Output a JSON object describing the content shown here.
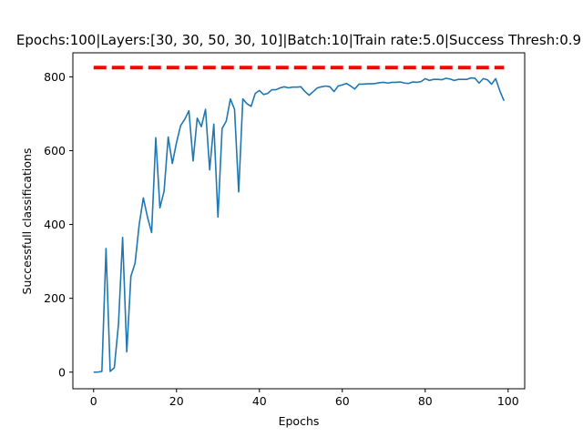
{
  "chart_data": {
    "type": "line",
    "title": "Epochs:100|Layers:[30, 30, 50, 30, 10]|Batch:10|Train rate:5.0|Success Thresh:0.9",
    "xlabel": "Epochs",
    "ylabel": "Successfull classifications",
    "xlim": [
      -5,
      104
    ],
    "ylim": [
      -45,
      865
    ],
    "xticks": [
      0,
      20,
      40,
      60,
      80,
      100
    ],
    "yticks": [
      0,
      200,
      400,
      600,
      800
    ],
    "grid": false,
    "legend": "none",
    "series": [
      {
        "name": "",
        "color": "#1f77b4",
        "x": [
          0,
          1,
          2,
          3,
          4,
          5,
          6,
          7,
          8,
          9,
          10,
          11,
          12,
          13,
          14,
          15,
          16,
          17,
          18,
          19,
          20,
          21,
          22,
          23,
          24,
          25,
          26,
          27,
          28,
          29,
          30,
          31,
          32,
          33,
          34,
          35,
          36,
          37,
          38,
          39,
          40,
          41,
          42,
          43,
          44,
          45,
          46,
          47,
          48,
          49,
          50,
          51,
          52,
          53,
          54,
          55,
          56,
          57,
          58,
          59,
          60,
          61,
          62,
          63,
          64,
          65,
          66,
          67,
          68,
          69,
          70,
          71,
          72,
          73,
          74,
          75,
          76,
          77,
          78,
          79,
          80,
          81,
          82,
          83,
          84,
          85,
          86,
          87,
          88,
          89,
          90,
          91,
          92,
          93,
          94,
          95,
          96,
          97,
          98,
          99
        ],
        "values": [
          0,
          0,
          2,
          335,
          2,
          12,
          130,
          365,
          55,
          260,
          295,
          400,
          472,
          420,
          378,
          635,
          445,
          490,
          637,
          565,
          622,
          668,
          685,
          708,
          572,
          688,
          665,
          712,
          548,
          672,
          420,
          660,
          680,
          740,
          712,
          488,
          740,
          727,
          720,
          755,
          763,
          752,
          755,
          765,
          765,
          770,
          773,
          770,
          772,
          772,
          773,
          760,
          750,
          760,
          770,
          773,
          775,
          773,
          760,
          775,
          778,
          782,
          775,
          767,
          780,
          780,
          781,
          781,
          782,
          784,
          785,
          783,
          785,
          785,
          786,
          783,
          782,
          786,
          785,
          787,
          795,
          790,
          793,
          793,
          792,
          796,
          794,
          790,
          793,
          793,
          793,
          797,
          796,
          783,
          795,
          792,
          780,
          795,
          762,
          735
        ]
      },
      {
        "name": "",
        "color": "#ff0000",
        "style": "dashed",
        "x": [
          0,
          99
        ],
        "values": [
          825,
          825
        ]
      }
    ]
  }
}
